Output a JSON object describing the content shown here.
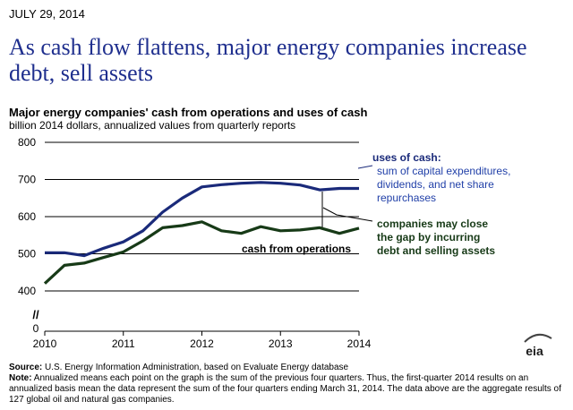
{
  "date": "JULY 29, 2014",
  "headline": "As cash flow flattens, major energy companies increase debt, sell assets",
  "chart_data": {
    "type": "line",
    "title": "Major energy companies' cash from operations and uses of cash",
    "subtitle": "billion 2014 dollars, annualized values from quarterly reports",
    "x_ticks": [
      "2010",
      "2011",
      "2012",
      "2013",
      "2014"
    ],
    "y_ticks": [
      "800",
      "700",
      "600",
      "500",
      "400"
    ],
    "y_break_label": "//",
    "y_zero_label": "0",
    "ylim": [
      400,
      800
    ],
    "xlim": [
      2010,
      2014
    ],
    "grid": true,
    "series": [
      {
        "name": "uses of cash",
        "color": "#1a2a7a",
        "x": [
          2010,
          2010.25,
          2010.5,
          2010.75,
          2011,
          2011.25,
          2011.5,
          2011.75,
          2012,
          2012.25,
          2012.5,
          2012.75,
          2013,
          2013.25,
          2013.5,
          2013.75,
          2014
        ],
        "values": [
          503,
          503,
          495,
          515,
          532,
          562,
          612,
          650,
          680,
          686,
          690,
          692,
          690,
          685,
          672,
          676,
          676
        ]
      },
      {
        "name": "cash from operations",
        "color": "#173a17",
        "x": [
          2010,
          2010.25,
          2010.5,
          2010.75,
          2011,
          2011.25,
          2011.5,
          2011.75,
          2012,
          2012.25,
          2012.5,
          2012.75,
          2013,
          2013.25,
          2013.5,
          2013.75,
          2014
        ],
        "values": [
          420,
          469,
          475,
          490,
          505,
          535,
          570,
          576,
          586,
          562,
          555,
          573,
          562,
          564,
          570,
          555,
          569
        ]
      }
    ],
    "annotations": {
      "uses_title": "uses of cash:",
      "uses_desc": [
        "sum of capital expenditures,",
        "dividends, and net share",
        "repurchases"
      ],
      "cfo_label": "cash from operations",
      "gap_note": [
        "companies may close",
        "the gap by incurring",
        "debt and selling assets"
      ]
    }
  },
  "footer": {
    "source_label": "Source:",
    "source_text": "U.S. Energy Information Administration, based on Evaluate Energy database",
    "note_label": "Note:",
    "note_text": "Annualized means each point on the graph is the sum of the previous four quarters. Thus, the first-quarter 2014 results on an annualized basis mean the data represent the sum of the four quarters ending March 31, 2014. The data above are the aggregate results of 127 global oil and natural gas companies."
  },
  "logo_text": "eia",
  "colors": {
    "headline": "#1f2f8e",
    "uses": "#1a2a7a",
    "cfo": "#173a17",
    "uses_text": "#2140a8"
  }
}
